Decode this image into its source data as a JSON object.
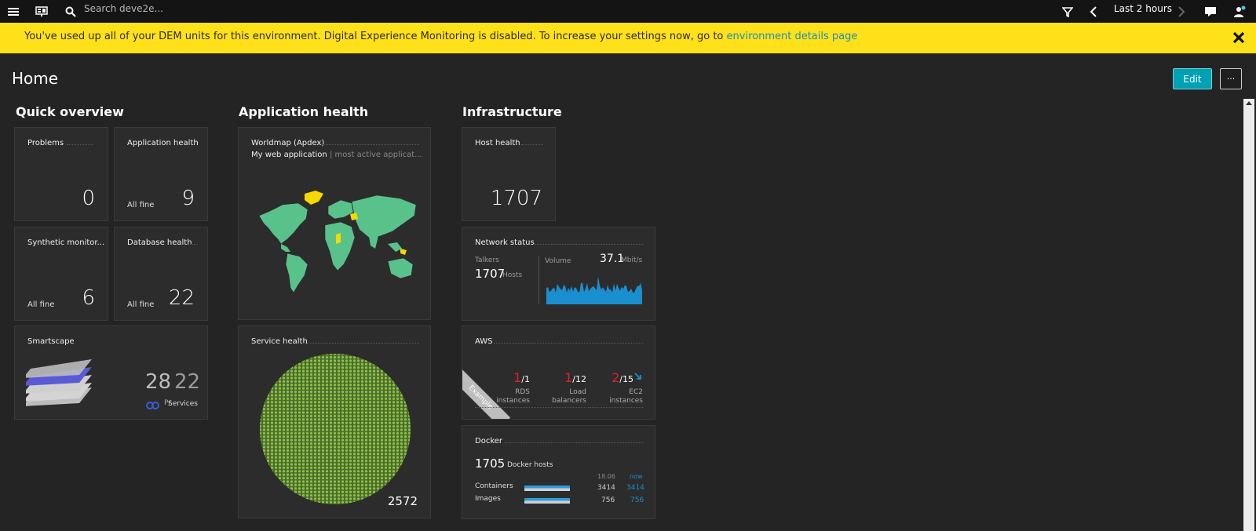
{
  "topbar": {
    "search_placeholder": "Search deve2e...",
    "timeframe": "Last 2 hours"
  },
  "banner": {
    "message": "You've used up all of your DEM units for this environment. Digital Experience Monitoring is disabled. To increase your settings now, go to ",
    "link": "environment details page"
  },
  "page": {
    "title": "Home",
    "edit_label": "Edit",
    "more_label": "···"
  },
  "sections": {
    "quick_overview": "Quick overview",
    "application_health": "Application health",
    "infrastructure": "Infrastructure"
  },
  "tiles": {
    "problems": {
      "title": "Problems",
      "value": "0"
    },
    "app_health": {
      "title": "Application health",
      "status": "All fine",
      "value": "9"
    },
    "synthetic": {
      "title": "Synthetic monitor...",
      "status": "All fine",
      "value": "6"
    },
    "database": {
      "title": "Database health",
      "status": "All fine",
      "value": "22"
    },
    "smartscape": {
      "title": "Smartscape",
      "value_a": "28",
      "value_b": "22",
      "label_a": "Pr",
      "label_b": "Services"
    },
    "worldmap": {
      "title": "Worldmap (Apdex)",
      "app": "My web application",
      "sub": "| most active applicat..."
    },
    "service_health": {
      "title": "Service health",
      "value": "2572"
    },
    "host_health": {
      "title": "Host health",
      "value": "1707"
    },
    "network": {
      "title": "Network status",
      "talkers_label": "Talkers",
      "talkers_value": "1707",
      "talkers_unit": "Hosts",
      "volume_label": "Volume",
      "volume_value": "37.1",
      "volume_unit": "Mbit/s"
    },
    "aws": {
      "title": "AWS",
      "ribbon": "Example",
      "items": [
        {
          "alert": "1",
          "total": "/1",
          "line1": "RDS",
          "line2": "instances"
        },
        {
          "alert": "1",
          "total": "/12",
          "line1": "Load",
          "line2": "balancers"
        },
        {
          "alert": "2",
          "total": "/15",
          "line1": "EC2",
          "line2": "instances"
        }
      ]
    },
    "docker": {
      "title": "Docker",
      "hosts_value": "1705",
      "hosts_label": "Docker hosts",
      "col_prev": "18.06",
      "col_now": "now",
      "containers_label": "Containers",
      "containers_prev": "3414",
      "containers_now": "3414",
      "images_label": "Images",
      "images_prev": "756",
      "images_now": "756"
    }
  },
  "colors": {
    "accent": "#00a1b2",
    "banner": "#ffe11a",
    "map_land": "#58c28a",
    "map_highlight": "#f5d800",
    "chart_fill": "#1a8fcf",
    "alert": "#e0202f"
  }
}
